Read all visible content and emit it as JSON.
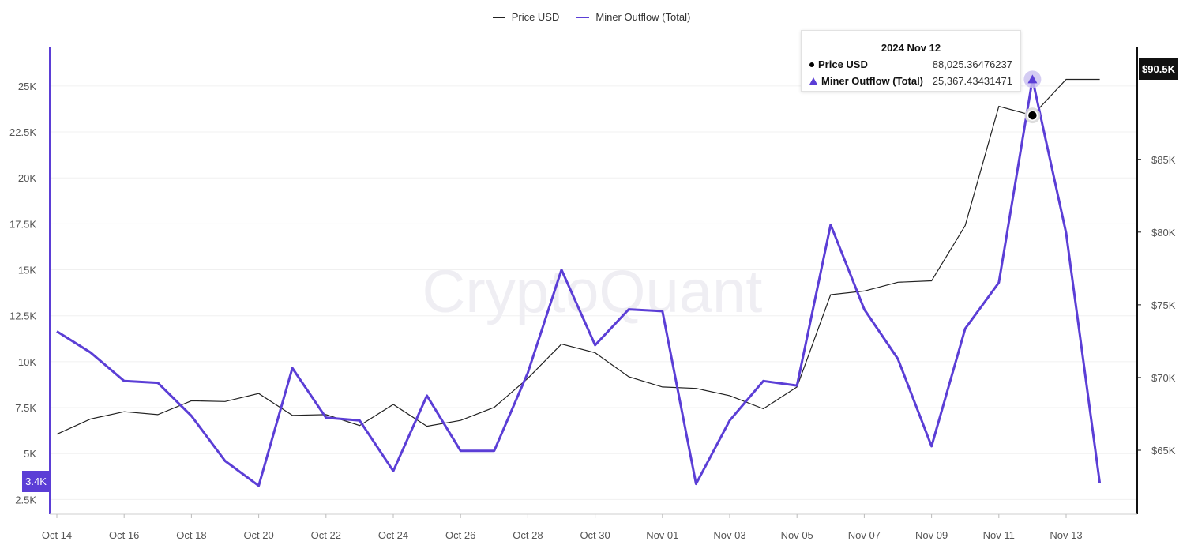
{
  "legend": {
    "items": [
      {
        "label": "Price USD",
        "color": "#222222"
      },
      {
        "label": "Miner Outflow (Total)",
        "color": "#5b3ed6"
      }
    ]
  },
  "watermark": "CryptoQuant",
  "tooltip": {
    "title": "2024 Nov 12",
    "rows": [
      {
        "name": "Price USD",
        "value": "88,025.36476237",
        "marker": "circle-icon"
      },
      {
        "name": "Miner Outflow (Total)",
        "value": "25,367.43431471",
        "marker": "triangle-icon"
      }
    ]
  },
  "badges": {
    "left_value": "3.4K",
    "right_value": "$90.5K"
  },
  "chart_data": {
    "type": "line",
    "x": [
      "Oct 14",
      "Oct 15",
      "Oct 16",
      "Oct 17",
      "Oct 18",
      "Oct 19",
      "Oct 20",
      "Oct 21",
      "Oct 22",
      "Oct 23",
      "Oct 24",
      "Oct 25",
      "Oct 26",
      "Oct 27",
      "Oct 28",
      "Oct 29",
      "Oct 30",
      "Oct 31",
      "Nov 01",
      "Nov 02",
      "Nov 03",
      "Nov 04",
      "Nov 05",
      "Nov 06",
      "Nov 07",
      "Nov 08",
      "Nov 09",
      "Nov 10",
      "Nov 11",
      "Nov 12",
      "Nov 13",
      "Nov 14"
    ],
    "x_tick_labels": [
      "Oct 14",
      "Oct 16",
      "Oct 18",
      "Oct 20",
      "Oct 22",
      "Oct 24",
      "Oct 26",
      "Oct 28",
      "Oct 30",
      "Nov 01",
      "Nov 03",
      "Nov 05",
      "Nov 07",
      "Nov 09",
      "Nov 11",
      "Nov 13"
    ],
    "series": [
      {
        "name": "Miner Outflow (Total)",
        "axis": "left",
        "color": "#5b3ed6",
        "values": [
          11650,
          10500,
          8950,
          8850,
          7050,
          4600,
          3250,
          9650,
          6950,
          6800,
          4050,
          8150,
          5150,
          5150,
          9400,
          15000,
          10900,
          12850,
          12750,
          3350,
          6800,
          8950,
          8700,
          17450,
          12850,
          10150,
          5400,
          11800,
          14300,
          25367.43431471,
          17000,
          3400
        ]
      },
      {
        "name": "Price USD",
        "axis": "right",
        "color": "#222222",
        "values": [
          66100,
          67150,
          67650,
          67450,
          68400,
          68350,
          68900,
          67400,
          67450,
          66700,
          68150,
          66650,
          67050,
          67950,
          69950,
          72300,
          71700,
          70050,
          69350,
          69250,
          68750,
          67850,
          69350,
          75700,
          75950,
          76550,
          76650,
          80450,
          88650,
          88025.36476237,
          90500,
          90500
        ]
      }
    ],
    "left_axis": {
      "ticks": [
        "2.5K",
        "5K",
        "7.5K",
        "10K",
        "12.5K",
        "15K",
        "17.5K",
        "20K",
        "22.5K",
        "25K"
      ],
      "tick_values": [
        2500,
        5000,
        7500,
        10000,
        12500,
        15000,
        17500,
        20000,
        22500,
        25000
      ],
      "ylim": [
        1700,
        27100
      ]
    },
    "right_axis": {
      "ticks": [
        "$65K",
        "$70K",
        "$75K",
        "$80K",
        "$85K"
      ],
      "tick_values": [
        65000,
        70000,
        75000,
        80000,
        85000
      ],
      "ylim": [
        60600,
        92700
      ]
    },
    "grid": true,
    "legend_position": "top-center"
  }
}
